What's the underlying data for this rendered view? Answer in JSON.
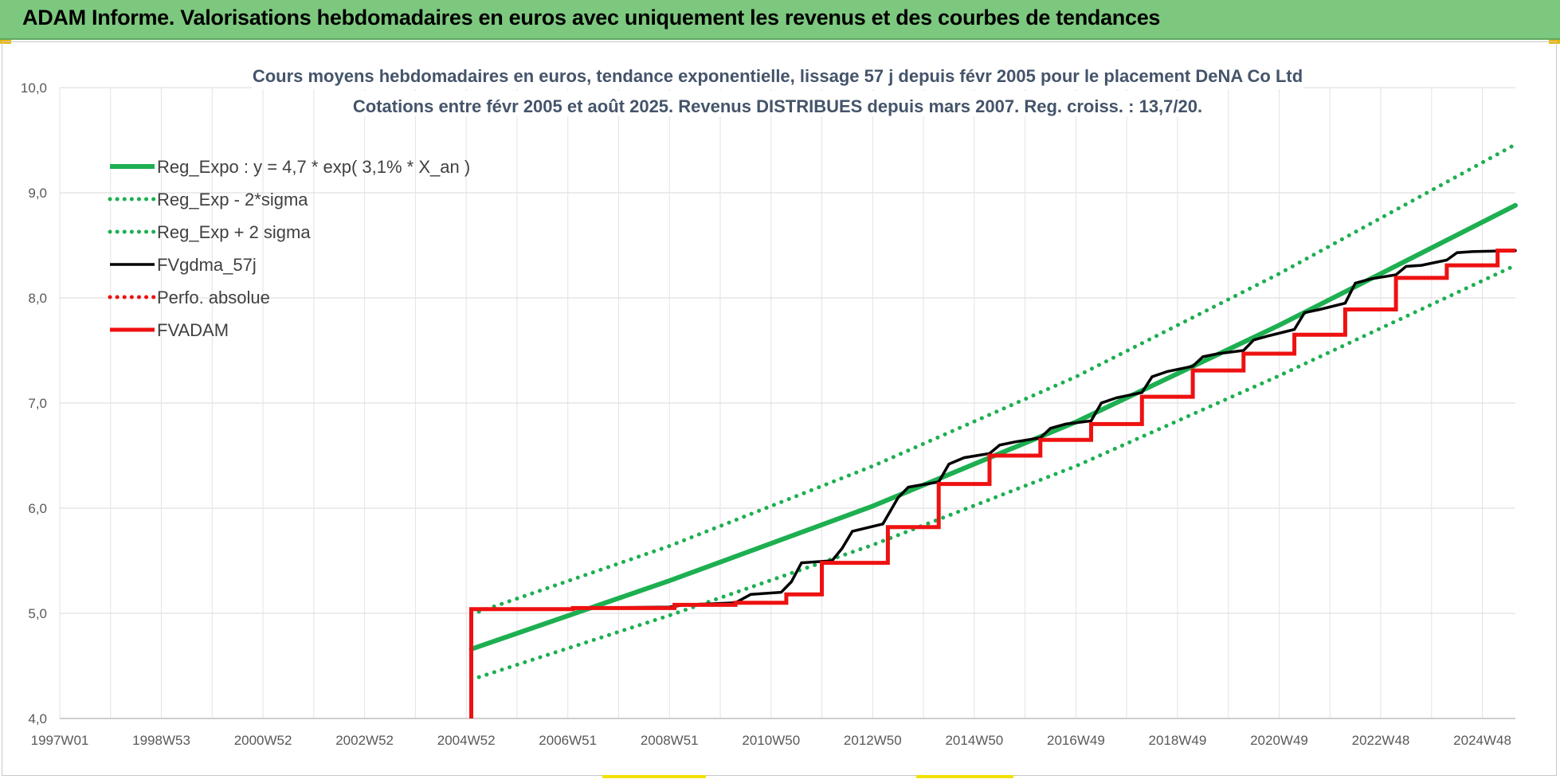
{
  "header": {
    "title": "ADAM Informe. Valorisations hebdomadaires en euros avec uniquement les revenus et des courbes de tendances"
  },
  "colors": {
    "banner": "#7dc87f",
    "trend": "#1daf51",
    "fv57": "#000000",
    "fvadam": "#ee1111",
    "perfo": "#ee1111",
    "title_text": "#44546a"
  },
  "chart_data": {
    "type": "line",
    "title_line1": "Cours moyens hebdomadaires en euros, tendance exponentielle, lissage 57 j depuis févr 2005 pour le placement DeNA Co Ltd",
    "title_line2": "Cotations entre févr 2005 et août 2025. Revenus DISTRIBUES depuis mars 2007. Reg. croiss. : 13,7/20.",
    "xlabel": "",
    "ylabel": "",
    "ylim": [
      4.0,
      10.0
    ],
    "xlim": [
      1997.0,
      2025.65
    ],
    "grid": true,
    "legend_position": "top-left",
    "y_ticks": [
      "4,0",
      "5,0",
      "6,0",
      "7,0",
      "8,0",
      "9,0",
      "10,0"
    ],
    "x_ticks": [
      {
        "label": "1997W01",
        "x": 1997.0
      },
      {
        "label": "1998W53",
        "x": 1999.0
      },
      {
        "label": "2000W52",
        "x": 2001.0
      },
      {
        "label": "2002W52",
        "x": 2003.0
      },
      {
        "label": "2004W52",
        "x": 2005.0
      },
      {
        "label": "2006W51",
        "x": 2007.0
      },
      {
        "label": "2008W51",
        "x": 2009.0
      },
      {
        "label": "2010W50",
        "x": 2011.0
      },
      {
        "label": "2012W50",
        "x": 2013.0
      },
      {
        "label": "2014W50",
        "x": 2015.0
      },
      {
        "label": "2016W49",
        "x": 2017.0
      },
      {
        "label": "2018W49",
        "x": 2019.0
      },
      {
        "label": "2020W49",
        "x": 2021.0
      },
      {
        "label": "2022W48",
        "x": 2023.0
      },
      {
        "label": "2024W48",
        "x": 2025.0
      }
    ],
    "series": [
      {
        "name": "Reg_Expo : y = 4,7 * exp( 3,1% *  X_an )",
        "style": "solid",
        "color": "#1daf51",
        "points": [
          [
            2005.1,
            4.66
          ],
          [
            2009.0,
            5.31
          ],
          [
            2013.0,
            6.02
          ],
          [
            2017.0,
            6.82
          ],
          [
            2021.0,
            7.74
          ],
          [
            2025.65,
            8.88
          ]
        ]
      },
      {
        "name": "Reg_Exp - 2*sigma",
        "style": "dotted",
        "color": "#1daf51",
        "points": [
          [
            2005.1,
            4.37
          ],
          [
            2009.0,
            4.98
          ],
          [
            2013.0,
            5.65
          ],
          [
            2017.0,
            6.4
          ],
          [
            2021.0,
            7.26
          ],
          [
            2025.65,
            8.31
          ]
        ]
      },
      {
        "name": "Reg_Exp + 2 sigma",
        "style": "dotted",
        "color": "#1daf51",
        "points": [
          [
            2005.1,
            4.99
          ],
          [
            2009.0,
            5.64
          ],
          [
            2013.0,
            6.4
          ],
          [
            2017.0,
            7.25
          ],
          [
            2021.0,
            8.23
          ],
          [
            2025.65,
            9.46
          ]
        ]
      },
      {
        "name": "FVgdma_57j",
        "style": "solid",
        "color": "#000000",
        "points": [
          [
            2005.1,
            5.04
          ],
          [
            2007.0,
            5.04
          ],
          [
            2007.3,
            5.05
          ],
          [
            2009.0,
            5.06
          ],
          [
            2009.3,
            5.08
          ],
          [
            2010.3,
            5.1
          ],
          [
            2010.6,
            5.18
          ],
          [
            2011.2,
            5.2
          ],
          [
            2011.4,
            5.3
          ],
          [
            2011.6,
            5.48
          ],
          [
            2012.2,
            5.5
          ],
          [
            2012.4,
            5.62
          ],
          [
            2012.6,
            5.78
          ],
          [
            2013.2,
            5.85
          ],
          [
            2013.5,
            6.1
          ],
          [
            2013.7,
            6.2
          ],
          [
            2014.3,
            6.25
          ],
          [
            2014.5,
            6.42
          ],
          [
            2014.8,
            6.48
          ],
          [
            2015.3,
            6.52
          ],
          [
            2015.5,
            6.6
          ],
          [
            2015.8,
            6.63
          ],
          [
            2016.3,
            6.67
          ],
          [
            2016.5,
            6.76
          ],
          [
            2016.8,
            6.8
          ],
          [
            2017.3,
            6.83
          ],
          [
            2017.5,
            7.0
          ],
          [
            2017.8,
            7.05
          ],
          [
            2018.3,
            7.1
          ],
          [
            2018.5,
            7.25
          ],
          [
            2018.8,
            7.3
          ],
          [
            2019.3,
            7.35
          ],
          [
            2019.5,
            7.44
          ],
          [
            2019.8,
            7.47
          ],
          [
            2020.3,
            7.5
          ],
          [
            2020.5,
            7.6
          ],
          [
            2020.8,
            7.64
          ],
          [
            2021.3,
            7.7
          ],
          [
            2021.5,
            7.86
          ],
          [
            2021.8,
            7.89
          ],
          [
            2022.3,
            7.95
          ],
          [
            2022.5,
            8.14
          ],
          [
            2022.8,
            8.18
          ],
          [
            2023.3,
            8.22
          ],
          [
            2023.5,
            8.3
          ],
          [
            2023.8,
            8.31
          ],
          [
            2024.3,
            8.36
          ],
          [
            2024.5,
            8.43
          ],
          [
            2024.8,
            8.44
          ],
          [
            2025.65,
            8.45
          ]
        ]
      },
      {
        "name": "Perfo. absolue",
        "style": "dotted",
        "color": "#ee1111",
        "points": []
      },
      {
        "name": "FVADAM",
        "style": "solid-thick",
        "color": "#ee1111",
        "points": [
          [
            2005.1,
            4.0
          ],
          [
            2005.1,
            5.04
          ],
          [
            2007.1,
            5.04
          ],
          [
            2007.1,
            5.05
          ],
          [
            2009.1,
            5.05
          ],
          [
            2009.1,
            5.08
          ],
          [
            2010.3,
            5.08
          ],
          [
            2010.3,
            5.1
          ],
          [
            2011.3,
            5.1
          ],
          [
            2011.3,
            5.18
          ],
          [
            2012.0,
            5.18
          ],
          [
            2012.0,
            5.48
          ],
          [
            2013.3,
            5.48
          ],
          [
            2013.3,
            5.82
          ],
          [
            2014.3,
            5.82
          ],
          [
            2014.3,
            6.23
          ],
          [
            2015.3,
            6.23
          ],
          [
            2015.3,
            6.5
          ],
          [
            2016.3,
            6.5
          ],
          [
            2016.3,
            6.65
          ],
          [
            2017.3,
            6.65
          ],
          [
            2017.3,
            6.8
          ],
          [
            2018.3,
            6.8
          ],
          [
            2018.3,
            7.06
          ],
          [
            2019.3,
            7.06
          ],
          [
            2019.3,
            7.31
          ],
          [
            2020.3,
            7.31
          ],
          [
            2020.3,
            7.47
          ],
          [
            2021.3,
            7.47
          ],
          [
            2021.3,
            7.65
          ],
          [
            2022.3,
            7.65
          ],
          [
            2022.3,
            7.89
          ],
          [
            2023.3,
            7.89
          ],
          [
            2023.3,
            8.19
          ],
          [
            2024.3,
            8.19
          ],
          [
            2024.3,
            8.31
          ],
          [
            2025.3,
            8.31
          ],
          [
            2025.3,
            8.45
          ],
          [
            2025.65,
            8.45
          ]
        ]
      }
    ]
  }
}
